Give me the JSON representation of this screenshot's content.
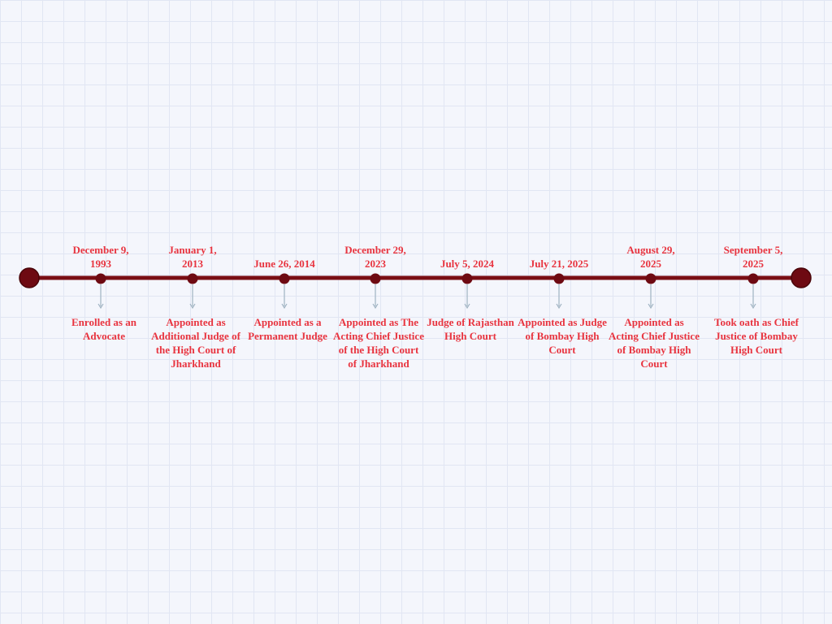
{
  "events": [
    {
      "date": "December 9, 1993",
      "description": "Enrolled as an Advocate"
    },
    {
      "date": "January 1, 2013",
      "description": "Appointed as Additional Judge of the High Court of Jharkhand"
    },
    {
      "date": "June 26, 2014",
      "description": "Appointed as a Permanent Judge"
    },
    {
      "date": "December 29, 2023",
      "description": "Appointed as The Acting Chief Justice of the High Court of Jharkhand"
    },
    {
      "date": "July 5, 2024",
      "description": "Judge of Rajasthan High Court"
    },
    {
      "date": "July 21, 2025",
      "description": "Appointed as Judge of Bombay High Court"
    },
    {
      "date": "August 29, 2025",
      "description": "Appointed as Acting Chief Justice of Bombay High Court"
    },
    {
      "date": "September 5, 2025",
      "description": "Took oath as Chief Justice of Bombay High Court"
    }
  ]
}
